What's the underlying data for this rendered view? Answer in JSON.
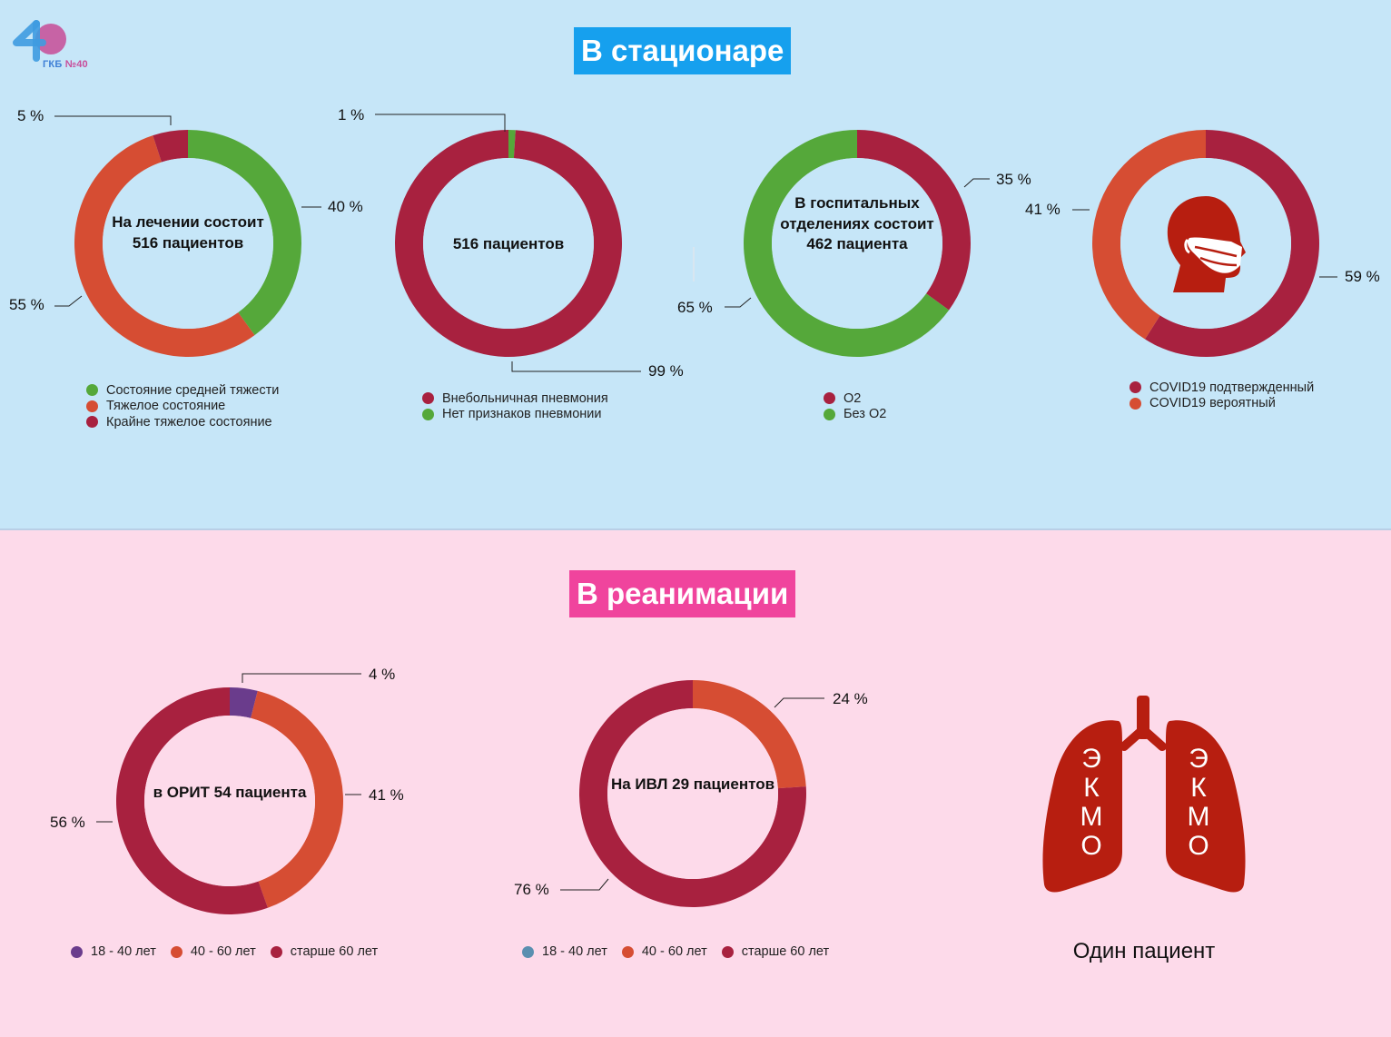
{
  "logo": {
    "number": "40",
    "text_prefix": "ГКБ",
    "text_suffix": "№40"
  },
  "sections": {
    "top_title": "В стационаре",
    "bottom_title": "В реанимации"
  },
  "colors": {
    "green": "#55a83a",
    "orange": "#d64d33",
    "crimson": "#a8213f",
    "purple": "#6a3c8c",
    "blue": "#5a8fb0",
    "top_bg": "#c6e6f8",
    "bottom_bg": "#fddaea",
    "title_blue": "#16a0ee",
    "title_pink": "#f0449d",
    "icon_red": "#b71e10"
  },
  "chart_data": [
    {
      "type": "pie",
      "donut": true,
      "center_label": "На лечении состоит 516 пациентов",
      "series": [
        {
          "name": "Состояние средней тяжести",
          "value": 40,
          "label": "40 %",
          "color": "#55a83a"
        },
        {
          "name": "Тяжелое состояние",
          "value": 55,
          "label": "55 %",
          "color": "#d64d33"
        },
        {
          "name": "Крайне тяжелое состояние",
          "value": 5,
          "label": "5 %",
          "color": "#a8213f"
        }
      ]
    },
    {
      "type": "pie",
      "donut": true,
      "center_label": "516 пациентов",
      "series": [
        {
          "name": "Нет признаков пневмонии",
          "value": 1,
          "label": "1 %",
          "color": "#55a83a"
        },
        {
          "name": "Внебольничная пневмония",
          "value": 99,
          "label": "99 %",
          "color": "#a8213f"
        }
      ],
      "legend_order": [
        "Внебольничная пневмония",
        "Нет признаков пневмонии"
      ]
    },
    {
      "type": "pie",
      "donut": true,
      "center_label": "В госпитальных отделениях состоит 462 пациента",
      "series": [
        {
          "name": "O2",
          "value": 35,
          "label": "35 %",
          "color": "#a8213f"
        },
        {
          "name": "Без O2",
          "value": 65,
          "label": "65 %",
          "color": "#55a83a"
        }
      ]
    },
    {
      "type": "pie",
      "donut": true,
      "center_label": "",
      "center_icon": "masked-head-icon",
      "series": [
        {
          "name": "COVID19 подтвержденный",
          "value": 59,
          "label": "59 %",
          "color": "#a8213f"
        },
        {
          "name": "COVID19 вероятный",
          "value": 41,
          "label": "41 %",
          "color": "#d64d33"
        }
      ]
    },
    {
      "type": "pie",
      "donut": true,
      "center_label": "в ОРИТ 54 пациента",
      "series": [
        {
          "name": "18 - 40 лет",
          "value": 4,
          "label": "4 %",
          "color": "#6a3c8c"
        },
        {
          "name": "40 - 60 лет",
          "value": 41,
          "label": "41 %",
          "color": "#d64d33"
        },
        {
          "name": "старше 60 лет",
          "value": 56,
          "label": "56 %",
          "color": "#a8213f"
        }
      ]
    },
    {
      "type": "pie",
      "donut": true,
      "center_label": "На ИВЛ 29 пациентов",
      "series": [
        {
          "name": "18 - 40 лет",
          "value": 0,
          "label": "",
          "color": "#5a8fb0"
        },
        {
          "name": "40 - 60 лет",
          "value": 24,
          "label": "24 %",
          "color": "#d64d33"
        },
        {
          "name": "старше 60 лет",
          "value": 76,
          "label": "76 %",
          "color": "#a8213f"
        }
      ]
    }
  ],
  "ekmo": {
    "left_letters": [
      "Э",
      "К",
      "М",
      "О"
    ],
    "right_letters": [
      "Э",
      "К",
      "М",
      "О"
    ],
    "caption": "Один пациент",
    "icon": "lungs-icon"
  }
}
